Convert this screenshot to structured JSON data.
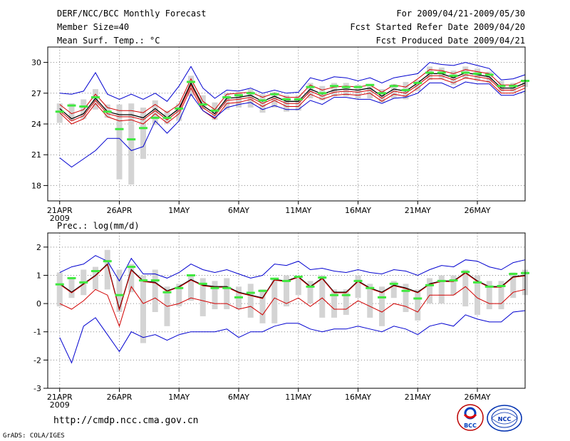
{
  "header": {
    "title": "DERF/NCC/BCC Monthly Forecast",
    "member_size": "Member Size=40",
    "variable1": "Mean Surf. Temp.: °C",
    "period": "For 2009/04/21-2009/05/30",
    "started": "Fcst Started Refer Date 2009/04/20",
    "produced": "Fcst Produced Date 2009/04/21"
  },
  "variable2": "Prec.: log(mm/d)",
  "footer": {
    "url": "http://cmdp.ncc.cma.gov.cn",
    "grads": "GrADS: COLA/IGES"
  },
  "logos": {
    "bcc": "BCC",
    "ncc": "NCC"
  },
  "colors": {
    "bar": "#d4d4d4",
    "median": "#3fe83f",
    "ensemble": "#d10000",
    "mean": "#000000",
    "spread": "#0000d0"
  },
  "chart_data": [
    {
      "type": "line",
      "name": "temperature",
      "ylabel": "Mean Surf. Temp.: °C",
      "ylim": [
        16.5,
        31.5
      ],
      "yticks": [
        18,
        21,
        24,
        27,
        30
      ],
      "xlim": [
        0,
        40
      ],
      "xticks": [
        {
          "x": 1,
          "label": "21APR",
          "sub": "2009"
        },
        {
          "x": 6,
          "label": "26APR"
        },
        {
          "x": 11,
          "label": "1MAY"
        },
        {
          "x": 16,
          "label": "6MAY"
        },
        {
          "x": 21,
          "label": "11MAY"
        },
        {
          "x": 26,
          "label": "16MAY"
        },
        {
          "x": 31,
          "label": "21MAY"
        },
        {
          "x": 36,
          "label": "26MAY"
        }
      ],
      "grid": true,
      "x": [
        1,
        2,
        3,
        4,
        5,
        6,
        7,
        8,
        9,
        10,
        11,
        12,
        13,
        14,
        15,
        16,
        17,
        18,
        19,
        20,
        21,
        22,
        23,
        24,
        25,
        26,
        27,
        28,
        29,
        30,
        31,
        32,
        33,
        34,
        35,
        36,
        37,
        38,
        39,
        40
      ],
      "series": [
        {
          "name": "ensemble mean",
          "values": [
            25.5,
            24.5,
            25.0,
            26.5,
            25.2,
            24.9,
            24.9,
            24.6,
            25.5,
            24.6,
            25.5,
            28.0,
            25.8,
            25.0,
            26.5,
            26.6,
            26.8,
            26.2,
            26.7,
            26.2,
            26.2,
            27.4,
            26.9,
            27.3,
            27.4,
            27.3,
            27.5,
            26.7,
            27.4,
            27.2,
            28.0,
            28.9,
            28.9,
            28.5,
            29.0,
            28.8,
            28.6,
            27.5,
            27.5,
            28.0
          ]
        },
        {
          "name": "member line",
          "values": [
            25.3,
            24.3,
            24.8,
            26.3,
            25.0,
            24.7,
            24.7,
            24.4,
            25.3,
            24.4,
            25.3,
            27.8,
            25.6,
            24.8,
            26.3,
            26.4,
            26.6,
            26.0,
            26.5,
            26.0,
            26.0,
            27.2,
            26.7,
            27.1,
            27.2,
            27.1,
            27.3,
            26.5,
            27.2,
            27.0,
            27.8,
            28.7,
            28.7,
            28.3,
            28.8,
            28.6,
            28.4,
            27.3,
            27.3,
            27.8
          ]
        },
        {
          "name": "upper member",
          "values": [
            25.9,
            25.0,
            25.4,
            26.9,
            25.6,
            25.3,
            25.3,
            25.1,
            25.9,
            25.1,
            25.9,
            28.4,
            26.2,
            25.4,
            26.9,
            27.0,
            27.1,
            26.6,
            27.0,
            26.6,
            26.6,
            27.8,
            27.3,
            27.6,
            27.7,
            27.6,
            27.8,
            27.1,
            27.8,
            27.6,
            28.4,
            29.3,
            29.2,
            28.9,
            29.3,
            29.1,
            28.9,
            27.8,
            27.8,
            28.3
          ]
        },
        {
          "name": "lower member",
          "values": [
            25.1,
            24.0,
            24.5,
            26.0,
            24.7,
            24.3,
            24.4,
            24.0,
            25.0,
            24.1,
            25.0,
            27.5,
            25.3,
            24.5,
            26.0,
            26.1,
            26.4,
            25.7,
            26.3,
            25.7,
            25.7,
            26.9,
            26.4,
            26.8,
            26.9,
            26.8,
            27.0,
            26.2,
            26.9,
            26.7,
            27.5,
            28.4,
            28.4,
            28.0,
            28.5,
            28.3,
            28.1,
            27.0,
            27.0,
            27.5
          ]
        },
        {
          "name": "spread max",
          "values": [
            27.0,
            26.9,
            27.2,
            29.0,
            26.9,
            26.4,
            26.9,
            26.4,
            27.0,
            26.2,
            27.7,
            29.6,
            27.5,
            26.5,
            27.3,
            27.2,
            27.5,
            27.0,
            27.3,
            27.0,
            27.1,
            28.5,
            28.2,
            28.6,
            28.5,
            28.2,
            28.5,
            28.0,
            28.5,
            28.7,
            28.9,
            30.0,
            29.8,
            29.7,
            30.0,
            29.7,
            29.4,
            28.3,
            28.4,
            28.8
          ]
        },
        {
          "name": "spread min",
          "values": [
            20.7,
            19.8,
            20.6,
            21.4,
            22.6,
            22.6,
            21.4,
            21.8,
            24.3,
            23.1,
            24.3,
            26.9,
            25.3,
            24.6,
            25.6,
            25.9,
            26.1,
            25.4,
            25.8,
            25.4,
            25.4,
            26.3,
            25.9,
            26.6,
            26.6,
            26.4,
            26.4,
            26.0,
            26.5,
            26.6,
            27.0,
            28.0,
            28.0,
            27.5,
            28.1,
            27.9,
            27.9,
            26.8,
            26.8,
            27.2
          ]
        }
      ],
      "bars": {
        "low": [
          24.1,
          24.3,
          24.5,
          25.4,
          24.6,
          18.6,
          18.1,
          20.6,
          23.9,
          24.0,
          24.3,
          26.7,
          25.4,
          24.4,
          25.4,
          25.6,
          25.6,
          25.1,
          25.6,
          25.2,
          25.3,
          26.5,
          26.3,
          26.7,
          26.7,
          26.5,
          26.5,
          26.1,
          26.5,
          26.4,
          27.2,
          28.3,
          28.4,
          27.8,
          28.4,
          28.2,
          28.0,
          27.1,
          27.1,
          27.6
        ],
        "high": [
          26.0,
          26.0,
          26.4,
          27.4,
          25.9,
          25.9,
          26.0,
          25.6,
          26.3,
          25.3,
          26.0,
          28.7,
          26.8,
          26.1,
          27.0,
          27.1,
          27.4,
          26.9,
          27.1,
          26.8,
          26.8,
          28.0,
          27.7,
          28.0,
          28.0,
          27.8,
          27.9,
          27.4,
          27.9,
          28.1,
          28.3,
          29.6,
          29.5,
          29.2,
          29.6,
          29.4,
          29.1,
          28.2,
          28.0,
          28.3
        ]
      },
      "medians": [
        25.2,
        25.8,
        25.7,
        26.6,
        25.2,
        23.5,
        22.5,
        23.6,
        24.6,
        24.6,
        25.5,
        28.1,
        25.9,
        25.3,
        26.6,
        26.8,
        27.0,
        26.3,
        26.9,
        26.4,
        26.4,
        27.6,
        27.0,
        27.7,
        27.6,
        27.6,
        27.8,
        27.0,
        27.7,
        27.3,
        28.0,
        29.0,
        29.0,
        28.7,
        29.0,
        28.9,
        28.8,
        27.7,
        27.7,
        28.2
      ]
    },
    {
      "type": "line",
      "name": "precipitation",
      "ylabel": "Prec.: log(mm/d)",
      "ylim": [
        -3,
        2.5
      ],
      "yticks": [
        -3,
        -2,
        -1,
        0,
        1,
        2
      ],
      "xlim": [
        0,
        40
      ],
      "xticks": [
        {
          "x": 1,
          "label": "21APR",
          "sub": "2009"
        },
        {
          "x": 6,
          "label": "26APR"
        },
        {
          "x": 11,
          "label": "1MAY"
        },
        {
          "x": 16,
          "label": "6MAY"
        },
        {
          "x": 21,
          "label": "11MAY"
        },
        {
          "x": 26,
          "label": "16MAY"
        },
        {
          "x": 31,
          "label": "21MAY"
        },
        {
          "x": 36,
          "label": "26MAY"
        }
      ],
      "grid": true,
      "x": [
        1,
        2,
        3,
        4,
        5,
        6,
        7,
        8,
        9,
        10,
        11,
        12,
        13,
        14,
        15,
        16,
        17,
        18,
        19,
        20,
        21,
        22,
        23,
        24,
        25,
        26,
        27,
        28,
        29,
        30,
        31,
        32,
        33,
        34,
        35,
        36,
        37,
        38,
        39,
        40
      ],
      "series": [
        {
          "name": "ensemble mean",
          "values": [
            0.7,
            0.4,
            0.7,
            1.0,
            1.4,
            -0.2,
            1.2,
            0.8,
            0.75,
            0.45,
            0.6,
            0.85,
            0.65,
            0.6,
            0.6,
            0.4,
            0.3,
            0.2,
            0.85,
            0.8,
            0.95,
            0.6,
            0.9,
            0.4,
            0.4,
            0.8,
            0.55,
            0.4,
            0.65,
            0.55,
            0.4,
            0.7,
            0.8,
            0.8,
            1.1,
            0.8,
            0.6,
            0.6,
            0.95,
            1.0
          ]
        },
        {
          "name": "member line",
          "values": [
            0.68,
            0.38,
            0.68,
            0.98,
            1.38,
            -0.22,
            1.18,
            0.78,
            0.73,
            0.43,
            0.58,
            0.83,
            0.63,
            0.58,
            0.58,
            0.38,
            0.28,
            0.18,
            0.83,
            0.78,
            0.93,
            0.58,
            0.88,
            0.38,
            0.38,
            0.78,
            0.53,
            0.38,
            0.63,
            0.53,
            0.38,
            0.68,
            0.78,
            0.78,
            1.08,
            0.78,
            0.58,
            0.58,
            0.93,
            0.98
          ]
        },
        {
          "name": "lower member",
          "values": [
            0.0,
            -0.2,
            0.1,
            0.5,
            0.3,
            -0.8,
            0.6,
            0.0,
            0.2,
            -0.1,
            0.0,
            0.2,
            0.1,
            0.0,
            0.0,
            -0.2,
            -0.1,
            -0.4,
            0.2,
            0.0,
            0.2,
            -0.1,
            0.2,
            -0.2,
            -0.2,
            0.1,
            -0.1,
            -0.3,
            0.0,
            -0.1,
            -0.3,
            0.3,
            0.3,
            0.3,
            0.6,
            0.2,
            0.0,
            0.0,
            0.4,
            0.5
          ]
        },
        {
          "name": "spread max",
          "values": [
            1.1,
            1.3,
            1.4,
            1.7,
            1.5,
            0.8,
            1.6,
            1.05,
            1.05,
            0.9,
            1.1,
            1.4,
            1.2,
            1.1,
            1.2,
            1.05,
            0.9,
            1.0,
            1.4,
            1.35,
            1.5,
            1.2,
            1.25,
            1.15,
            1.1,
            1.2,
            1.1,
            1.05,
            1.2,
            1.15,
            1.0,
            1.2,
            1.35,
            1.3,
            1.55,
            1.5,
            1.3,
            1.2,
            1.45,
            1.55
          ]
        },
        {
          "name": "spread min",
          "values": [
            -1.2,
            -2.1,
            -0.8,
            -0.5,
            -1.1,
            -1.7,
            -1.0,
            -1.2,
            -1.1,
            -1.3,
            -1.1,
            -1.0,
            -1.0,
            -1.0,
            -0.9,
            -1.2,
            -1.0,
            -1.0,
            -0.8,
            -0.7,
            -0.7,
            -0.9,
            -1.0,
            -0.9,
            -0.9,
            -0.8,
            -0.9,
            -1.0,
            -0.8,
            -0.9,
            -1.1,
            -0.8,
            -0.7,
            -0.8,
            -0.4,
            -0.55,
            -0.65,
            -0.65,
            -0.3,
            -0.25
          ]
        }
      ],
      "bars": {
        "low": [
          -0.1,
          0.2,
          0.3,
          0.5,
          0.5,
          -0.3,
          0.4,
          -1.4,
          -0.3,
          -0.8,
          -0.1,
          0.1,
          -0.45,
          -0.2,
          -0.2,
          -0.2,
          -0.5,
          -0.7,
          -0.7,
          -0.1,
          0.3,
          0.0,
          -0.5,
          -0.5,
          -0.4,
          0.2,
          -0.5,
          -0.8,
          0.2,
          -0.3,
          -0.6,
          0.0,
          0.0,
          0.3,
          -0.1,
          -0.4,
          -0.2,
          -0.2,
          0.2,
          0.3
        ],
        "high": [
          1.1,
          0.9,
          1.2,
          1.3,
          1.9,
          1.2,
          1.4,
          1.0,
          1.2,
          0.6,
          0.7,
          1.0,
          0.9,
          0.8,
          0.9,
          0.6,
          0.7,
          0.5,
          0.9,
          1.0,
          0.9,
          0.8,
          1.0,
          0.5,
          0.5,
          1.0,
          0.7,
          0.6,
          0.8,
          0.7,
          0.5,
          0.9,
          1.0,
          1.0,
          1.2,
          1.0,
          0.8,
          0.8,
          1.1,
          1.2
        ]
      },
      "medians": [
        0.68,
        0.9,
        0.75,
        1.15,
        1.5,
        0.3,
        1.3,
        0.82,
        0.82,
        0.4,
        0.55,
        1.0,
        0.7,
        0.55,
        0.55,
        0.22,
        0.38,
        0.45,
        0.88,
        0.8,
        0.95,
        0.6,
        0.92,
        0.3,
        0.3,
        0.8,
        0.55,
        0.22,
        0.7,
        0.45,
        0.18,
        0.65,
        0.8,
        0.82,
        1.12,
        0.75,
        0.6,
        0.62,
        1.05,
        1.08
      ]
    }
  ]
}
